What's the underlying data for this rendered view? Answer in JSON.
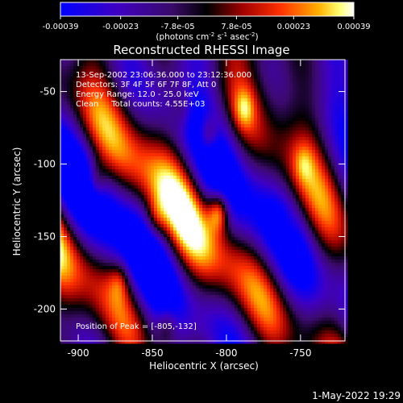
{
  "chart_data": {
    "type": "heatmap",
    "title": "Reconstructed RHESSI Image",
    "xlabel": "Heliocentric X (arcsec)",
    "ylabel": "Heliocentric Y (arcsec)",
    "xlim": [
      -912,
      -720
    ],
    "ylim": [
      -222,
      -28
    ],
    "xticks": [
      -900,
      -850,
      -800,
      -750
    ],
    "yticks": [
      -50,
      -100,
      -150,
      -200
    ],
    "xtick_labels": [
      "-900",
      "-850",
      "-800",
      "-750"
    ],
    "ytick_labels": [
      "-50",
      "-100",
      "-150",
      "-200"
    ],
    "colorbar": {
      "ticks": [
        -0.00039,
        -0.00023,
        -7.8e-05,
        7.8e-05,
        0.00023,
        0.00039
      ],
      "tick_labels": [
        "-0.00039",
        "-0.00023",
        "-7.8e-05",
        "7.8e-05",
        "0.00023",
        "0.00039"
      ],
      "range": [
        -0.00039,
        0.00039
      ],
      "unit_label": "(photons cm",
      "unit_exp1": "-2",
      "unit_mid": " s",
      "unit_exp2": "-1",
      "unit_mid2": " asec",
      "unit_exp3": "-2",
      "unit_end": ")",
      "colors": [
        "#0000ff",
        "#3c00c8",
        "#5a0a96",
        "#000000",
        "#b40000",
        "#ff3c00",
        "#ffa000",
        "#ffff64",
        "#ffffff"
      ]
    },
    "annotations": [
      "13-Sep-2002 23:06:36.000 to 23:12:36.000",
      "Detectors: 3F 4F 5F 6F 7F 8F, Att 0",
      "Energy Range: 12.0 - 25.0 keV",
      "Clean     Total counts: 4.55E+03"
    ],
    "peak_label": "Position of Peak = ",
    "peak_value": "[-805,-132]",
    "peak": {
      "x": -805,
      "y": -132
    },
    "bright_sources": [
      {
        "x": -805,
        "y": -132,
        "value": 0.00039
      },
      {
        "x": -812,
        "y": -80,
        "value": 0.00032
      },
      {
        "x": -788,
        "y": -62,
        "value": 0.00018
      },
      {
        "x": -888,
        "y": -112,
        "value": 0.00022
      },
      {
        "x": -872,
        "y": -180,
        "value": 0.00016
      },
      {
        "x": -840,
        "y": -212,
        "value": 0.0002
      },
      {
        "x": -760,
        "y": -150,
        "value": 0.00014
      },
      {
        "x": -748,
        "y": -100,
        "value": 0.00012
      },
      {
        "x": -848,
        "y": -138,
        "value": 0.00015
      },
      {
        "x": -830,
        "y": -62,
        "value": 0.00013
      }
    ]
  },
  "footer": {
    "date": "1-May-2022 19:29"
  }
}
